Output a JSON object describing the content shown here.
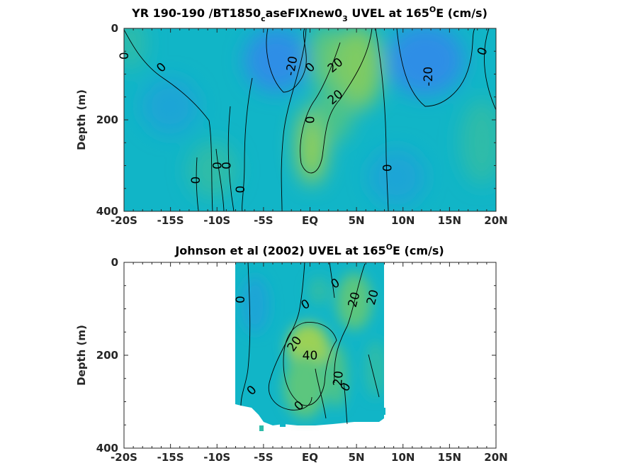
{
  "chart_data": [
    {
      "type": "heatmap",
      "title_parts": [
        "YR 190-190 /BT1850",
        "c",
        "aseFIXnew0",
        "3",
        " UVEL at 165",
        "O",
        "E (cm/s)"
      ],
      "ylabel": "Depth (m)",
      "xticks": [
        "-20S",
        "-15S",
        "-10S",
        "-5S",
        "EQ",
        "5N",
        "10N",
        "15N",
        "20N"
      ],
      "xtick_values": [
        -20,
        -15,
        -10,
        -5,
        0,
        5,
        10,
        15,
        20
      ],
      "yticks": [
        "0",
        "200",
        "400"
      ],
      "ytick_values": [
        0,
        200,
        400
      ],
      "xlim": [
        -20,
        20
      ],
      "ylim": [
        400,
        0
      ],
      "colors": {
        "strong_west": "#2f8ee6",
        "west": "#1ea5d6",
        "zero": "#11b5c7",
        "weak_east": "#2dbca8",
        "east": "#5cc67e",
        "strong_east": "#9bd156"
      },
      "contour_labels": [
        {
          "text": "0",
          "x": -20,
          "y": 60,
          "angle": -90
        },
        {
          "text": "0",
          "x": -16,
          "y": 85,
          "angle": -45
        },
        {
          "text": "-20",
          "x": -2.0,
          "y": 82,
          "angle": -80
        },
        {
          "text": "0",
          "x": 0,
          "y": 85,
          "angle": -45
        },
        {
          "text": "20",
          "x": 2.7,
          "y": 80,
          "angle": -40
        },
        {
          "text": "20",
          "x": 2.7,
          "y": 150,
          "angle": -40
        },
        {
          "text": "0",
          "x": 0,
          "y": 200,
          "angle": -90
        },
        {
          "text": "-20",
          "x": 12.7,
          "y": 105,
          "angle": -90
        },
        {
          "text": "0",
          "x": 18.5,
          "y": 50,
          "angle": -70
        },
        {
          "text": "0",
          "x": -10.0,
          "y": 300,
          "angle": -90
        },
        {
          "text": "0",
          "x": -9.0,
          "y": 300,
          "angle": -90
        },
        {
          "text": "0",
          "x": -12.3,
          "y": 332,
          "angle": -90
        },
        {
          "text": "0",
          "x": -7.5,
          "y": 352,
          "angle": -90
        },
        {
          "text": "0",
          "x": 8.3,
          "y": 305,
          "angle": -90
        }
      ]
    },
    {
      "type": "heatmap",
      "title_parts": [
        "Johnson et al (2002) UVEL at 165",
        "O",
        "E (cm/s)"
      ],
      "ylabel": "Depth (m)",
      "xticks": [
        "-20S",
        "-15S",
        "-10S",
        "-5S",
        "EQ",
        "5N",
        "10N",
        "15N",
        "20N"
      ],
      "xtick_values": [
        -20,
        -15,
        -10,
        -5,
        0,
        5,
        10,
        15,
        20
      ],
      "yticks": [
        "0",
        "200",
        "400"
      ],
      "ytick_values": [
        0,
        200,
        400
      ],
      "xlim": [
        -20,
        20
      ],
      "ylim": [
        400,
        0
      ],
      "data_extent": {
        "x": [
          -8,
          8
        ],
        "y": [
          0,
          360
        ]
      },
      "contour_labels": [
        {
          "text": "0",
          "x": -7.5,
          "y": 80,
          "angle": -90
        },
        {
          "text": "0",
          "x": -0.5,
          "y": 90,
          "angle": -30
        },
        {
          "text": "0",
          "x": 2.7,
          "y": 45,
          "angle": -30
        },
        {
          "text": "20",
          "x": 4.7,
          "y": 80,
          "angle": -75
        },
        {
          "text": "20",
          "x": 6.7,
          "y": 75,
          "angle": -75
        },
        {
          "text": "20",
          "x": -1.7,
          "y": 175,
          "angle": -55
        },
        {
          "text": "40",
          "x": 0,
          "y": 200,
          "angle": 0
        },
        {
          "text": "20",
          "x": 3.0,
          "y": 250,
          "angle": -85
        },
        {
          "text": "0",
          "x": 3.8,
          "y": 268,
          "angle": -60
        },
        {
          "text": "0",
          "x": -6.3,
          "y": 275,
          "angle": -45
        },
        {
          "text": "0",
          "x": -1.2,
          "y": 308,
          "angle": -45
        }
      ]
    }
  ]
}
